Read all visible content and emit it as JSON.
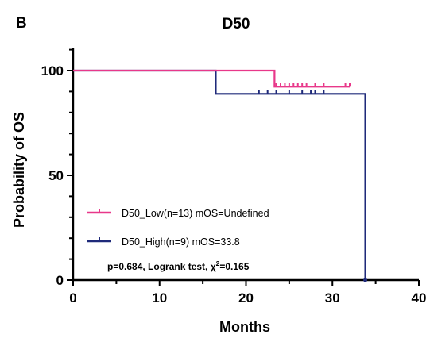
{
  "panel_label": "B",
  "chart_data": {
    "type": "line",
    "title": "D50",
    "xlabel": "Months",
    "ylabel": "Probability of OS",
    "xlim": [
      0,
      40
    ],
    "ylim": [
      0,
      100
    ],
    "x_ticks": [
      0,
      10,
      20,
      30,
      40
    ],
    "y_ticks": [
      0,
      50,
      100
    ],
    "grid": false,
    "legend_position": "bottom-left",
    "annotation": {
      "prefix": "p=0.684,   Logrank test, χ",
      "superscript": "2",
      "suffix": "=0.165"
    },
    "series": [
      {
        "name": "D50_Low(n=13) mOS=Undefined",
        "color": "#e8388a",
        "steps": [
          [
            0,
            100
          ],
          [
            23.3,
            100
          ],
          [
            23.3,
            92.3
          ],
          [
            32,
            92.3
          ]
        ],
        "censored": [
          23.5,
          24,
          24.5,
          25,
          25.5,
          26,
          26.5,
          27,
          28,
          29,
          31.5,
          32
        ]
      },
      {
        "name": "D50_High(n=9)  mOS=33.8",
        "color": "#1f2a7a",
        "steps": [
          [
            0,
            100
          ],
          [
            16.5,
            100
          ],
          [
            16.5,
            88.9
          ],
          [
            33.8,
            88.9
          ],
          [
            33.8,
            0
          ]
        ],
        "censored": [
          16.5,
          21.5,
          22.5,
          23.5,
          25,
          26.5,
          27.5,
          28,
          29
        ]
      }
    ]
  }
}
